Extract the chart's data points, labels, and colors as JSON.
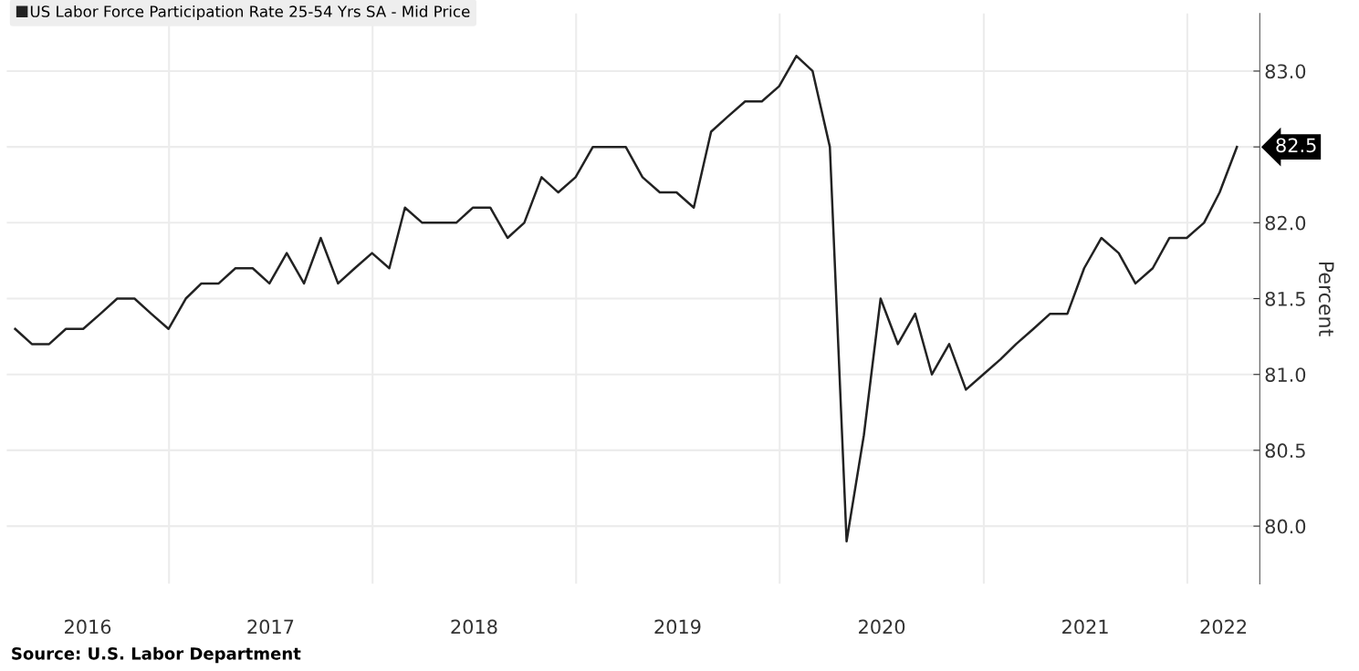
{
  "chart_data": {
    "type": "line",
    "x": [
      "2016-03-31",
      "2016-04-30",
      "2016-05-31",
      "2016-06-30",
      "2016-07-31",
      "2016-08-31",
      "2016-09-30",
      "2016-10-31",
      "2016-11-30",
      "2016-12-31",
      "2017-01-31",
      "2017-02-28",
      "2017-03-31",
      "2017-04-30",
      "2017-05-31",
      "2017-06-30",
      "2017-07-31",
      "2017-08-31",
      "2017-09-30",
      "2017-10-31",
      "2017-11-30",
      "2017-12-31",
      "2018-01-31",
      "2018-02-28",
      "2018-03-31",
      "2018-04-30",
      "2018-05-31",
      "2018-06-30",
      "2018-07-31",
      "2018-08-31",
      "2018-09-30",
      "2018-10-31",
      "2018-11-30",
      "2018-12-31",
      "2019-01-31",
      "2019-02-28",
      "2019-03-31",
      "2019-04-30",
      "2019-05-31",
      "2019-06-30",
      "2019-07-31",
      "2019-08-31",
      "2019-09-30",
      "2019-10-31",
      "2019-11-30",
      "2019-12-31",
      "2020-01-31",
      "2020-02-29",
      "2020-03-31",
      "2020-04-30",
      "2020-05-31",
      "2020-06-30",
      "2020-07-31",
      "2020-08-31",
      "2020-09-30",
      "2020-10-31",
      "2020-11-30",
      "2020-12-31",
      "2021-01-31",
      "2021-02-28",
      "2021-03-31",
      "2021-04-30",
      "2021-05-31",
      "2021-06-30",
      "2021-07-31",
      "2021-08-31",
      "2021-09-30",
      "2021-10-31",
      "2021-11-30",
      "2021-12-31",
      "2022-01-31",
      "2022-02-28",
      "2022-03-31"
    ],
    "series": [
      {
        "name": "US Labor Force Participation Rate 25-54 Yrs SA - Mid Price",
        "color": "#222222",
        "values": [
          81.3,
          81.2,
          81.2,
          81.3,
          81.3,
          81.4,
          81.5,
          81.5,
          81.4,
          81.3,
          81.5,
          81.6,
          81.6,
          81.7,
          81.7,
          81.6,
          81.8,
          81.6,
          81.9,
          81.6,
          81.7,
          81.8,
          81.7,
          82.1,
          82.0,
          82.0,
          82.0,
          82.1,
          82.1,
          81.9,
          82.0,
          82.3,
          82.2,
          82.3,
          82.5,
          82.5,
          82.5,
          82.3,
          82.2,
          82.2,
          82.1,
          82.6,
          82.7,
          82.8,
          82.8,
          82.9,
          83.1,
          83.0,
          82.5,
          79.9,
          80.6,
          81.5,
          81.2,
          81.4,
          81.0,
          81.2,
          80.9,
          81.0,
          81.1,
          81.2,
          81.3,
          81.4,
          81.4,
          81.7,
          81.9,
          81.8,
          81.6,
          81.7,
          81.9,
          81.9,
          82.0,
          82.2,
          82.5
        ]
      }
    ],
    "ylabel": "Percent",
    "xlim": [
      "2016-03-16",
      "2022-05-11"
    ],
    "xticks": [
      {
        "value": "2016-08-08",
        "label": "2016"
      },
      {
        "value": "2017-01-01",
        "label": null
      },
      {
        "value": "2017-07-02",
        "label": "2017"
      },
      {
        "value": "2018-01-01",
        "label": null
      },
      {
        "value": "2018-07-02",
        "label": "2018"
      },
      {
        "value": "2019-01-01",
        "label": null
      },
      {
        "value": "2019-07-02",
        "label": "2019"
      },
      {
        "value": "2020-01-01",
        "label": null
      },
      {
        "value": "2020-07-02",
        "label": "2020"
      },
      {
        "value": "2021-01-01",
        "label": null
      },
      {
        "value": "2021-07-02",
        "label": "2021"
      },
      {
        "value": "2022-01-01",
        "label": null
      },
      {
        "value": "2022-03-07",
        "label": "2022"
      }
    ],
    "ylim": [
      79.62,
      83.38
    ],
    "yticks": [
      {
        "value": 80.0,
        "label": "80.0"
      },
      {
        "value": 80.5,
        "label": "80.5"
      },
      {
        "value": 81.0,
        "label": "81.0"
      },
      {
        "value": 81.5,
        "label": "81.5"
      },
      {
        "value": 82.0,
        "label": "82.0"
      },
      {
        "value": 82.5,
        "label": null
      },
      {
        "value": 83.0,
        "label": "83.0"
      }
    ],
    "grid": true,
    "legend": "top left",
    "line_style": "solid",
    "annotations": [
      "82.5",
      "Source: U.S. Labor Department"
    ]
  }
}
